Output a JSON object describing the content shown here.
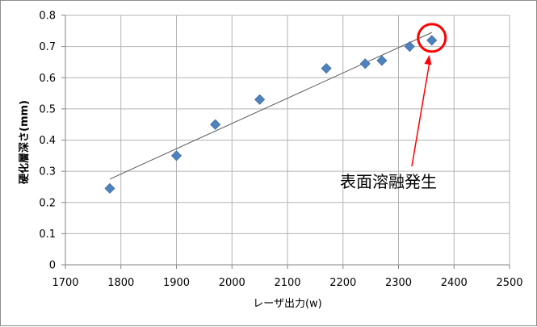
{
  "chart_data": {
    "type": "scatter",
    "title": "",
    "xlabel": "レーザ出力(w)",
    "ylabel": "硬化層深さ(mm)",
    "xlim": [
      1700,
      2500
    ],
    "ylim": [
      0,
      0.8
    ],
    "xticks": [
      1700,
      1800,
      1900,
      2000,
      2100,
      2200,
      2300,
      2400,
      2500
    ],
    "yticks": [
      0,
      0.1,
      0.2,
      0.3,
      0.4,
      0.5,
      0.6,
      0.7,
      0.8
    ],
    "grid": true,
    "legend": "none",
    "series": [
      {
        "x": [
          1780,
          1900,
          1970,
          2050,
          2170,
          2240,
          2270,
          2320,
          2360
        ],
        "y": [
          0.245,
          0.35,
          0.45,
          0.53,
          0.63,
          0.645,
          0.655,
          0.7,
          0.72
        ],
        "marker": "diamond",
        "color": "#4f81bd"
      }
    ],
    "trendline": {
      "type": "linear",
      "x": [
        1780,
        2360
      ],
      "y": [
        0.275,
        0.745
      ],
      "color": "#595959"
    },
    "annotation": {
      "text": "表面溶融発生",
      "target_x": 2360,
      "target_y": 0.72,
      "color": "#ff0000"
    }
  }
}
